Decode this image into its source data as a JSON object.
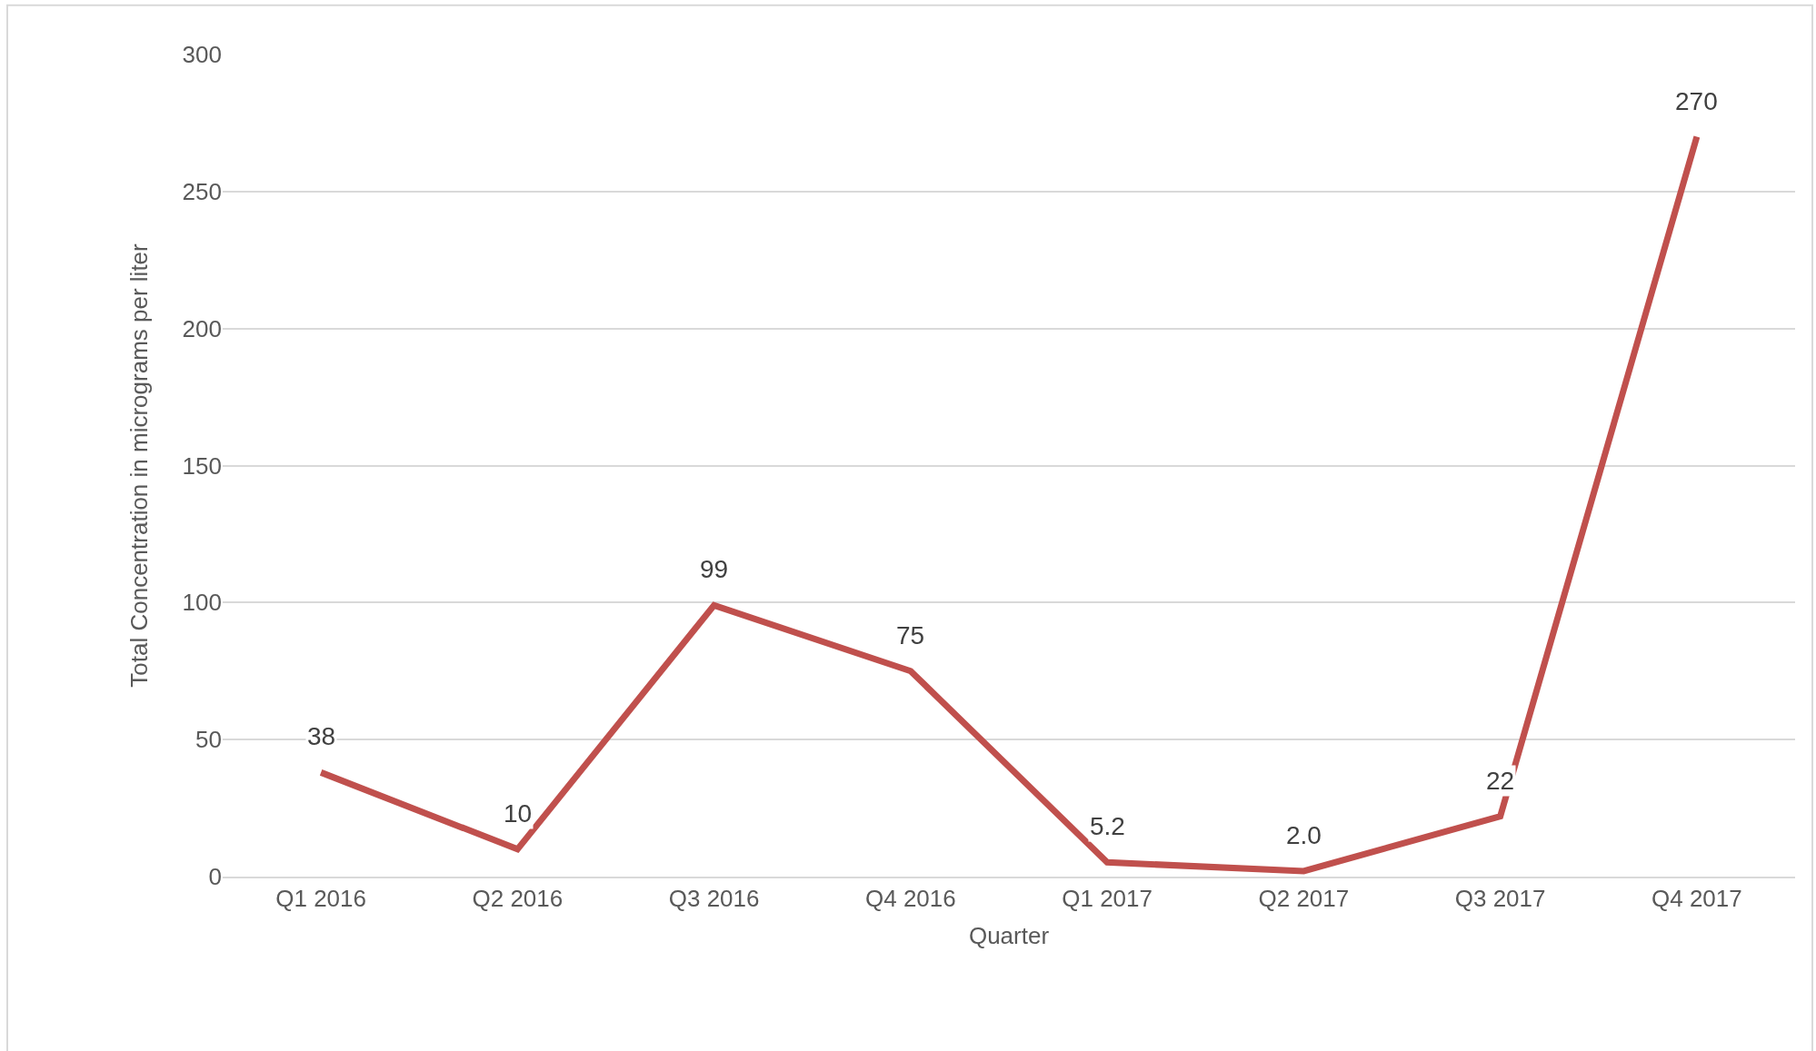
{
  "chart_data": {
    "type": "line",
    "xlabel": "Quarter",
    "ylabel": "Total Concentration in micrograms per liter",
    "categories": [
      "Q1 2016",
      "Q2 2016",
      "Q3 2016",
      "Q4 2016",
      "Q1 2017",
      "Q2 2017",
      "Q3 2017",
      "Q4 2017"
    ],
    "values": [
      38,
      10,
      99,
      75,
      5.2,
      2.0,
      22,
      270
    ],
    "value_labels": [
      "38",
      "10",
      "99",
      "75",
      "5.2",
      "2.0",
      "22",
      "270"
    ],
    "color": "#c0504d",
    "ylim": [
      0,
      300
    ],
    "yticks": [
      0,
      50,
      100,
      150,
      200,
      250,
      300
    ],
    "grid": "y",
    "marker": "none",
    "line_style": "solid"
  }
}
